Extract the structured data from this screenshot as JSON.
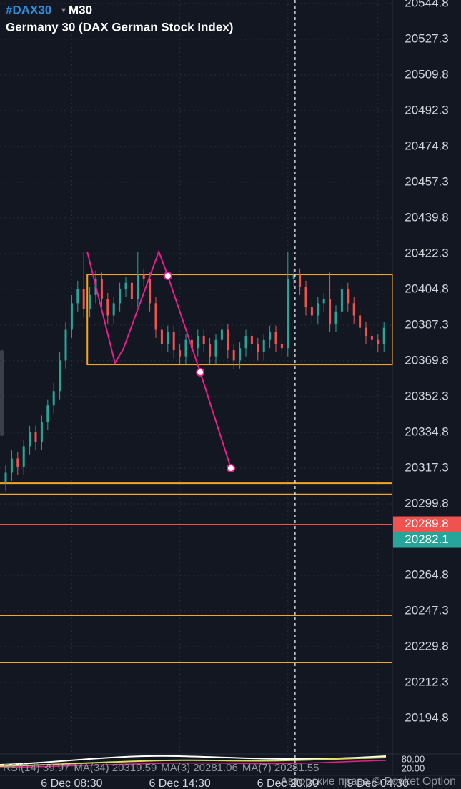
{
  "chart_data": {
    "type": "ohlc",
    "title": "#DAX30",
    "interval": "M30",
    "subtitle": "Germany 30 (DAX German Stock Index)",
    "categories": [
      null,
      null,
      null,
      null,
      null,
      null,
      null,
      null,
      null,
      null,
      null,
      "6 Dec 08:30",
      null,
      null,
      null,
      null,
      null,
      null,
      null,
      null,
      null,
      null,
      null,
      null,
      null,
      null,
      null,
      null,
      null,
      "6 Dec 14:30",
      null,
      null,
      null,
      null,
      null,
      null,
      null,
      null,
      null,
      null,
      null,
      null,
      null,
      null,
      null,
      null,
      null,
      "6 Dec 20:30",
      null,
      null,
      null,
      null,
      null,
      null,
      null,
      null,
      null,
      null,
      null,
      null,
      null,
      null,
      "9 Dec 04:30",
      null
    ],
    "open": [
      20310,
      20315,
      20322,
      20318,
      20328,
      20335,
      20330,
      20340,
      20348,
      20355,
      20370,
      20385,
      20398,
      20405,
      20395,
      20402,
      20410,
      20400,
      20392,
      20398,
      20405,
      20408,
      20400,
      20412,
      20410,
      20398,
      20385,
      20378,
      20384,
      20375,
      20372,
      20380,
      20376,
      20382,
      20378,
      20372,
      20380,
      20385,
      20375,
      20370,
      20376,
      20382,
      20378,
      20374,
      20380,
      20384,
      20378,
      20376,
      20410,
      20412,
      20406,
      20396,
      20392,
      20398,
      20400,
      20388,
      20394,
      20405,
      20398,
      20392,
      20386,
      20382,
      20380,
      20378
    ],
    "high": [
      20319,
      20326,
      20325,
      20331,
      20338,
      20338,
      20343,
      20351,
      20359,
      20374,
      20389,
      20402,
      20409,
      20423,
      20406,
      20414,
      20413,
      20403,
      20401,
      20408,
      20411,
      20411,
      20423,
      20415,
      20413,
      20401,
      20388,
      20387,
      20387,
      20378,
      20383,
      20383,
      20385,
      20385,
      20381,
      20383,
      20388,
      20388,
      20378,
      20379,
      20385,
      20385,
      20381,
      20383,
      20387,
      20387,
      20381,
      20423,
      20415,
      20415,
      20409,
      20399,
      20401,
      20403,
      20413,
      20397,
      20408,
      20408,
      20401,
      20395,
      20389,
      20385,
      20383,
      20389
    ],
    "low": [
      20306,
      20311,
      20314,
      20314,
      20324,
      20326,
      20326,
      20336,
      20344,
      20351,
      20366,
      20381,
      20394,
      20391,
      20391,
      20398,
      20396,
      20388,
      20388,
      20394,
      20401,
      20396,
      20396,
      20406,
      20394,
      20381,
      20374,
      20374,
      20371,
      20368,
      20368,
      20372,
      20372,
      20374,
      20368,
      20368,
      20376,
      20371,
      20366,
      20366,
      20372,
      20374,
      20370,
      20370,
      20376,
      20374,
      20372,
      20372,
      20406,
      20402,
      20392,
      20388,
      20388,
      20394,
      20384,
      20384,
      20390,
      20394,
      20388,
      20382,
      20378,
      20376,
      20374,
      20374
    ],
    "close": [
      20315,
      20322,
      20318,
      20328,
      20335,
      20330,
      20340,
      20348,
      20355,
      20370,
      20385,
      20398,
      20405,
      20395,
      20402,
      20410,
      20400,
      20392,
      20398,
      20405,
      20408,
      20400,
      20412,
      20410,
      20398,
      20385,
      20378,
      20384,
      20375,
      20372,
      20380,
      20376,
      20382,
      20378,
      20372,
      20380,
      20385,
      20375,
      20370,
      20376,
      20382,
      20378,
      20374,
      20380,
      20384,
      20378,
      20376,
      20410,
      20412,
      20406,
      20396,
      20392,
      20398,
      20400,
      20388,
      20394,
      20405,
      20398,
      20392,
      20386,
      20382,
      20380,
      20378,
      20386
    ],
    "up_color": "#26a69a",
    "down_color": "#ef5350",
    "ylim": [
      20177.3,
      20546.5
    ],
    "yticks": [
      20544.8,
      20527.3,
      20509.8,
      20492.3,
      20474.8,
      20457.3,
      20439.8,
      20422.3,
      20404.8,
      20387.3,
      20369.8,
      20352.3,
      20334.8,
      20317.3,
      20299.8,
      20264.8,
      20247.3,
      20229.8,
      20212.3,
      20194.8
    ],
    "grid": true,
    "price_lines": [
      {
        "value": 20289.8,
        "color": "#ef5350"
      },
      {
        "value": 20282.1,
        "color": "#26a69a"
      }
    ],
    "levels": {
      "color": "#f5a623",
      "values": [
        20309.9,
        20304.4,
        20245.2,
        20222.1
      ]
    },
    "zone": {
      "color": "#f5a623",
      "x": 13.6,
      "range": [
        20368.0,
        20412.1
      ]
    },
    "trendline": {
      "color": "#e91e8c",
      "x": [
        13.6,
        18.2,
        19.6,
        25.5,
        27.0,
        32.4,
        37.5
      ],
      "values": [
        20423.0,
        20368.7,
        20375.7,
        20423.3,
        20411.4,
        20364.2,
        20317.3
      ]
    },
    "crosshair_x": 48.2,
    "indicators": [
      "RSI(14) 39.97",
      "MA(34) 20319.59",
      "MA(3) 20281.06",
      "MA(7) 20281.55"
    ],
    "indicator_ticks": [
      "80.00",
      "20.00"
    ],
    "watermark": "Авторские права © Pocket Option"
  }
}
